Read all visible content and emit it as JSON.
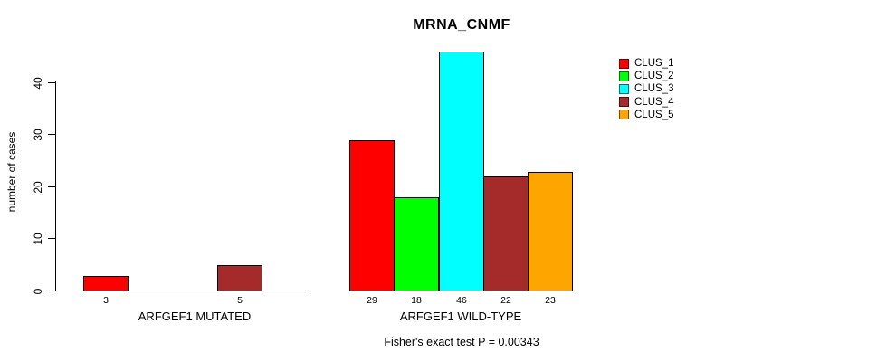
{
  "chart_data": {
    "type": "bar",
    "title": "MRNA_CNMF",
    "ylabel": "number of cases",
    "ylim": [
      0,
      46
    ],
    "yticks": [
      0,
      10,
      20,
      30,
      40
    ],
    "grid": false,
    "legend_position": "top-right",
    "series_names": [
      "CLUS_1",
      "CLUS_2",
      "CLUS_3",
      "CLUS_4",
      "CLUS_5"
    ],
    "series_colors": {
      "CLUS_1": "#FF0000",
      "CLUS_2": "#00FF00",
      "CLUS_3": "#00FFFF",
      "CLUS_4": "#A52A2A",
      "CLUS_5": "#FFA500"
    },
    "groups": [
      {
        "key": "mutated",
        "label": "ARFGEF1 MUTATED",
        "values": [
          3,
          0,
          0,
          5,
          0
        ],
        "bar_labels": [
          "3",
          "",
          "",
          "5",
          ""
        ]
      },
      {
        "key": "wild-type",
        "label": "ARFGEF1 WILD-TYPE",
        "values": [
          29,
          18,
          46,
          22,
          23
        ],
        "bar_labels": [
          "29",
          "18",
          "46",
          "22",
          "23"
        ]
      }
    ],
    "annotation": "Fisher's exact test P = 0.00343",
    "axis_color": "#000000",
    "bar_border_color": "#000000"
  }
}
